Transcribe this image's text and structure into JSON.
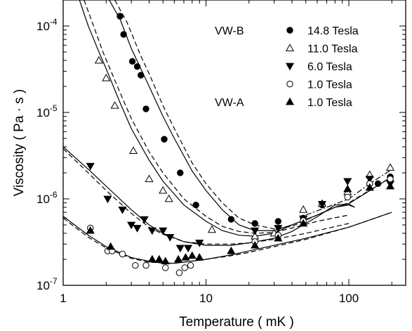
{
  "chart_data": {
    "type": "scatter",
    "xlabel": "Temperature  ( mK )",
    "ylabel": "Viscosity  ( Pa · s )",
    "xscale": "log",
    "yscale": "log",
    "xlim": [
      1,
      250
    ],
    "ylim": [
      1e-07,
      0.0002
    ],
    "x_ticks": [
      {
        "value": 1,
        "label": "1"
      },
      {
        "value": 10,
        "label": "10"
      },
      {
        "value": 100,
        "label": "100"
      }
    ],
    "y_ticks": [
      {
        "value": 1e-07,
        "base": "10",
        "exp": "-7"
      },
      {
        "value": 1e-06,
        "base": "10",
        "exp": "-6"
      },
      {
        "value": 1e-05,
        "base": "10",
        "exp": "-5"
      },
      {
        "value": 0.0001,
        "base": "10",
        "exp": "-4"
      }
    ],
    "grid": false,
    "legend_position": "top-right",
    "legend_groups": [
      {
        "group": "VW-B",
        "first_series": 0
      },
      {
        "group": "VW-A",
        "first_series": 4
      }
    ],
    "series": [
      {
        "name": "14.8 Tesla",
        "marker": "filled-circle",
        "points": [
          [
            2.5,
            0.00013
          ],
          [
            2.65,
            8e-05
          ],
          [
            3.05,
            3.9e-05
          ],
          [
            3.3,
            3.4e-05
          ],
          [
            3.5,
            2.7e-05
          ],
          [
            3.8,
            1.1e-05
          ],
          [
            5.1,
            4.9e-06
          ],
          [
            6.6,
            2e-06
          ],
          [
            8.5,
            8.5e-07
          ],
          [
            15,
            5.8e-07
          ],
          [
            22,
            5.2e-07
          ],
          [
            32,
            5.5e-07
          ],
          [
            48,
            6e-07
          ],
          [
            65,
            8.5e-07
          ],
          [
            140,
            1.5e-06
          ],
          [
            160,
            1.5e-06
          ],
          [
            195,
            1.8e-06
          ]
        ]
      },
      {
        "name": "11.0 Tesla",
        "marker": "open-triangle-up",
        "points": [
          [
            1.78,
            4e-05
          ],
          [
            2.0,
            2.5e-05
          ],
          [
            2.3,
            1.2e-05
          ],
          [
            3.1,
            3.6e-06
          ],
          [
            4.0,
            1.7e-06
          ],
          [
            5.0,
            1.25e-06
          ],
          [
            5.5,
            1e-06
          ],
          [
            11,
            4.4e-07
          ],
          [
            22,
            3.7e-07
          ],
          [
            30,
            4e-07
          ],
          [
            48,
            7.5e-07
          ],
          [
            65,
            8.8e-07
          ],
          [
            98,
            1.2e-06
          ],
          [
            140,
            1.9e-06
          ],
          [
            195,
            2.3e-06
          ]
        ]
      },
      {
        "name": "6.0 Tesla",
        "marker": "filled-triangle-down",
        "points": [
          [
            1.55,
            2.4e-06
          ],
          [
            2.05,
            1e-06
          ],
          [
            2.6,
            7.5e-07
          ],
          [
            3.0,
            5e-07
          ],
          [
            3.3,
            4.6e-07
          ],
          [
            3.7,
            5.8e-07
          ],
          [
            4.2,
            4.3e-07
          ],
          [
            5.0,
            4.3e-07
          ],
          [
            5.6,
            3.6e-07
          ],
          [
            6.6,
            2.7e-07
          ],
          [
            7.5,
            2.7e-07
          ],
          [
            9,
            3.1e-07
          ],
          [
            22,
            4.3e-07
          ],
          [
            32,
            4.6e-07
          ],
          [
            48,
            5.9e-07
          ],
          [
            65,
            8.7e-07
          ],
          [
            98,
            1.6e-06
          ],
          [
            140,
            1.7e-06
          ],
          [
            195,
            1.5e-06
          ]
        ]
      },
      {
        "name": "1.0 Tesla",
        "marker": "open-circle",
        "points": [
          [
            1.55,
            4.6e-07
          ],
          [
            2.05,
            2.5e-07
          ],
          [
            2.2,
            2.5e-07
          ],
          [
            2.6,
            2.3e-07
          ],
          [
            3.2,
            1.7e-07
          ],
          [
            3.8,
            1.7e-07
          ],
          [
            5.2,
            1.6e-07
          ],
          [
            6.5,
            1.4e-07
          ],
          [
            7.1,
            1.6e-07
          ],
          [
            7.8,
            1.7e-07
          ],
          [
            22,
            3.2e-07
          ],
          [
            32,
            3.8e-07
          ],
          [
            48,
            5.6e-07
          ],
          [
            98,
            1.05e-06
          ],
          [
            140,
            1.5e-06
          ],
          [
            195,
            1.7e-06
          ]
        ]
      },
      {
        "name": "1.0 Tesla",
        "marker": "filled-triangle-up",
        "points": [
          [
            1.55,
            4.3e-07
          ],
          [
            2.15,
            2.8e-07
          ],
          [
            4.2,
            2e-07
          ],
          [
            4.7,
            2e-07
          ],
          [
            5.2,
            1.9e-07
          ],
          [
            6.4,
            2e-07
          ],
          [
            7.2,
            2.1e-07
          ],
          [
            8,
            2.2e-07
          ],
          [
            9,
            2.1e-07
          ],
          [
            15,
            2.5e-07
          ],
          [
            22,
            2.9e-07
          ],
          [
            32,
            3.5e-07
          ],
          [
            48,
            5.2e-07
          ],
          [
            98,
            1.3e-06
          ],
          [
            140,
            1.35e-06
          ],
          [
            195,
            1.4e-06
          ]
        ]
      }
    ],
    "curves": [
      {
        "style": "solid",
        "points": [
          [
            2.1,
            0.0002
          ],
          [
            2.5,
            0.00012
          ],
          [
            3,
            5.5e-05
          ],
          [
            4,
            2e-05
          ],
          [
            5,
            9e-06
          ],
          [
            6,
            5e-06
          ],
          [
            8,
            2.1e-06
          ],
          [
            10,
            1.25e-06
          ],
          [
            13,
            7.5e-07
          ],
          [
            17,
            5e-07
          ],
          [
            22,
            4.3e-07
          ],
          [
            30,
            4.3e-07
          ],
          [
            40,
            5e-07
          ],
          [
            60,
            6.5e-07
          ],
          [
            80,
            8e-07
          ],
          [
            100,
            8.8e-07
          ],
          [
            200,
            1.8e-06
          ]
        ]
      },
      {
        "style": "dashed",
        "points": [
          [
            2.3,
            0.0002
          ],
          [
            2.8,
            0.00011
          ],
          [
            3.5,
            4.5e-05
          ],
          [
            4,
            2.8e-05
          ],
          [
            5,
            1.2e-05
          ],
          [
            6,
            6.5e-06
          ],
          [
            8,
            2.6e-06
          ],
          [
            10,
            1.5e-06
          ],
          [
            13,
            9e-07
          ],
          [
            17,
            6e-07
          ],
          [
            22,
            5e-07
          ],
          [
            30,
            4.5e-07
          ],
          [
            40,
            4.8e-07
          ],
          [
            60,
            6.5e-07
          ],
          [
            80,
            8e-07
          ],
          [
            100,
            9e-07
          ],
          [
            200,
            1.8e-06
          ]
        ]
      },
      {
        "style": "solid",
        "points": [
          [
            1.3,
            0.0002
          ],
          [
            1.5,
            0.0001
          ],
          [
            1.8,
            4.8e-05
          ],
          [
            2,
            3.2e-05
          ],
          [
            2.5,
            1.3e-05
          ],
          [
            3,
            6.5e-06
          ],
          [
            4,
            2.8e-06
          ],
          [
            5,
            1.6e-06
          ],
          [
            7,
            8.5e-07
          ],
          [
            10,
            5.5e-07
          ],
          [
            13,
            4.3e-07
          ],
          [
            17,
            3.8e-07
          ],
          [
            22,
            3.7e-07
          ],
          [
            30,
            4e-07
          ],
          [
            40,
            5e-07
          ],
          [
            60,
            6.5e-07
          ],
          [
            80,
            8e-07
          ],
          [
            100,
            8.5e-07
          ],
          [
            110,
            8e-07
          ]
        ]
      },
      {
        "style": "dashed",
        "points": [
          [
            1.4,
            0.0002
          ],
          [
            1.6,
            0.00011
          ],
          [
            1.9,
            5e-05
          ],
          [
            2.2,
            2.8e-05
          ],
          [
            2.5,
            1.7e-05
          ],
          [
            3,
            8.5e-06
          ],
          [
            4,
            3.5e-06
          ],
          [
            5,
            2e-06
          ],
          [
            7,
            1e-06
          ],
          [
            10,
            6.3e-07
          ],
          [
            13,
            4.8e-07
          ],
          [
            17,
            4.2e-07
          ],
          [
            22,
            4e-07
          ],
          [
            30,
            4.1e-07
          ],
          [
            40,
            4.6e-07
          ],
          [
            60,
            5.5e-07
          ],
          [
            100,
            6.5e-07
          ]
        ]
      },
      {
        "style": "solid",
        "points": [
          [
            1,
            4e-06
          ],
          [
            1.5,
            2.2e-06
          ],
          [
            2,
            1.4e-06
          ],
          [
            3,
            7.5e-07
          ],
          [
            4,
            5e-07
          ],
          [
            5,
            4e-07
          ],
          [
            7,
            3.2e-07
          ],
          [
            10,
            2.9e-07
          ],
          [
            15,
            2.9e-07
          ],
          [
            20,
            3.1e-07
          ],
          [
            30,
            3.5e-07
          ],
          [
            40,
            4.2e-07
          ],
          [
            60,
            6.2e-07
          ],
          [
            80,
            8.5e-07
          ],
          [
            100,
            8.7e-07
          ],
          [
            110,
            8e-07
          ]
        ]
      },
      {
        "style": "dashed",
        "points": [
          [
            1,
            3.8e-06
          ],
          [
            1.5,
            2e-06
          ],
          [
            2,
            1.25e-06
          ],
          [
            3,
            6.8e-07
          ],
          [
            4,
            4.7e-07
          ],
          [
            5,
            3.9e-07
          ],
          [
            7,
            3.2e-07
          ],
          [
            10,
            3e-07
          ],
          [
            15,
            3e-07
          ],
          [
            20,
            3.1e-07
          ],
          [
            30,
            3.4e-07
          ],
          [
            50,
            4e-07
          ],
          [
            100,
            5.2e-07
          ]
        ]
      },
      {
        "style": "solid",
        "points": [
          [
            1,
            6.3e-07
          ],
          [
            1.5,
            3.8e-07
          ],
          [
            2,
            2.8e-07
          ],
          [
            3,
            2.1e-07
          ],
          [
            4,
            1.9e-07
          ],
          [
            5,
            1.8e-07
          ],
          [
            6,
            1.8e-07
          ],
          [
            8,
            1.9e-07
          ],
          [
            10,
            2e-07
          ],
          [
            15,
            2.25e-07
          ],
          [
            20,
            2.5e-07
          ],
          [
            30,
            2.9e-07
          ],
          [
            50,
            3.5e-07
          ],
          [
            100,
            4.7e-07
          ],
          [
            200,
            7e-07
          ]
        ]
      },
      {
        "style": "dashed",
        "points": [
          [
            1,
            6e-07
          ],
          [
            1.5,
            3.6e-07
          ],
          [
            2,
            2.7e-07
          ],
          [
            3,
            2.05e-07
          ],
          [
            4,
            1.85e-07
          ],
          [
            6,
            1.8e-07
          ],
          [
            10,
            2e-07
          ],
          [
            15,
            2.2e-07
          ],
          [
            20,
            2.4e-07
          ],
          [
            30,
            2.8e-07
          ],
          [
            50,
            3.4e-07
          ],
          [
            100,
            4.7e-07
          ],
          [
            200,
            7e-07
          ]
        ]
      },
      {
        "style": "dashdot",
        "points": [
          [
            50,
            6.5e-07
          ],
          [
            70,
            8e-07
          ],
          [
            100,
            1e-06
          ],
          [
            140,
            1.5e-06
          ],
          [
            200,
            2.2e-06
          ]
        ]
      }
    ]
  }
}
